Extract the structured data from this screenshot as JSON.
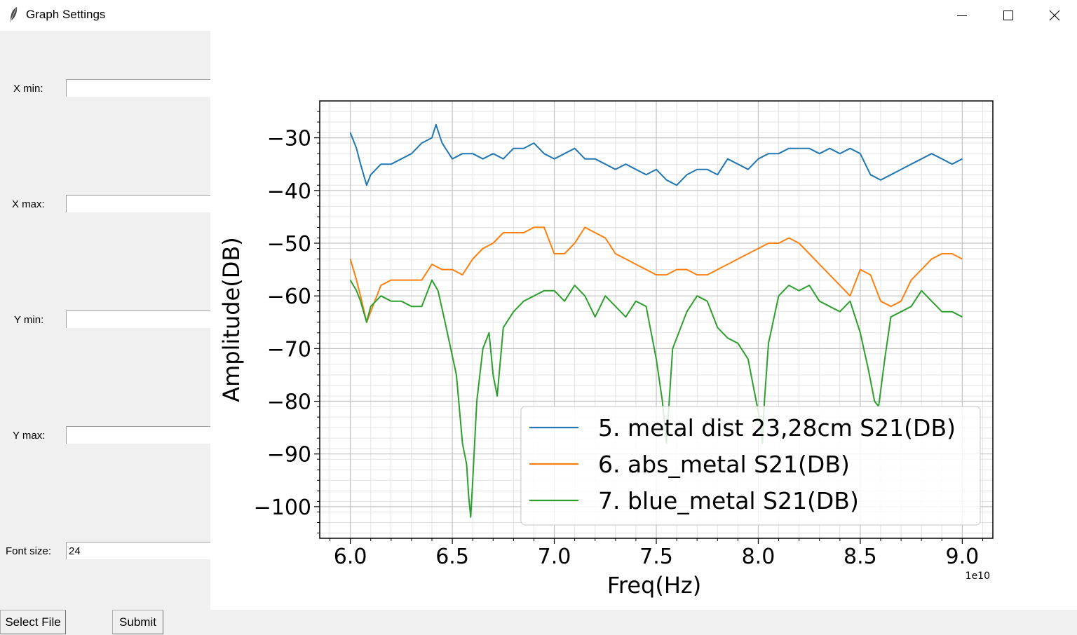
{
  "window": {
    "title": "Graph Settings",
    "app_icon": "feather-icon",
    "controls": [
      "minimize-icon",
      "maximize-icon",
      "close-icon"
    ]
  },
  "settings": {
    "x_min": {
      "label": "X min:",
      "value": ""
    },
    "x_max": {
      "label": "X max:",
      "value": ""
    },
    "y_min": {
      "label": "Y min:",
      "value": ""
    },
    "y_max": {
      "label": "Y max:",
      "value": ""
    },
    "font_size": {
      "label": "Font size:",
      "value": "24"
    }
  },
  "buttons": {
    "select_file": "Select File",
    "submit": "Submit"
  },
  "chart_data": {
    "type": "line",
    "title": "",
    "xlabel": "Freq(Hz)",
    "ylabel": "Amplitude(DB)",
    "x_offset_label": "1e10",
    "xlim": [
      5.85,
      9.15
    ],
    "ylim": [
      -106,
      -23
    ],
    "xticks": [
      6.0,
      6.5,
      7.0,
      7.5,
      8.0,
      8.5,
      9.0
    ],
    "xtick_labels": [
      "6.0",
      "6.5",
      "7.0",
      "7.5",
      "8.0",
      "8.5",
      "9.0"
    ],
    "yticks": [
      -30,
      -40,
      -50,
      -60,
      -70,
      -80,
      -90,
      -100
    ],
    "ytick_labels": [
      "−30",
      "−40",
      "−50",
      "−60",
      "−70",
      "−80",
      "−90",
      "−100"
    ],
    "grid": true,
    "minor_grid": true,
    "legend_position": "lower-right",
    "series": [
      {
        "name": "5. metal dist 23,28cm S21(DB)",
        "color": "#1f77b4",
        "x": [
          6.0,
          6.03,
          6.05,
          6.08,
          6.1,
          6.15,
          6.2,
          6.25,
          6.3,
          6.35,
          6.4,
          6.42,
          6.45,
          6.5,
          6.55,
          6.6,
          6.65,
          6.7,
          6.75,
          6.8,
          6.85,
          6.9,
          6.95,
          7.0,
          7.05,
          7.1,
          7.15,
          7.2,
          7.25,
          7.3,
          7.35,
          7.4,
          7.45,
          7.5,
          7.55,
          7.6,
          7.65,
          7.7,
          7.75,
          7.8,
          7.85,
          7.9,
          7.95,
          8.0,
          8.05,
          8.1,
          8.15,
          8.2,
          8.25,
          8.3,
          8.35,
          8.4,
          8.45,
          8.5,
          8.55,
          8.6,
          8.65,
          8.7,
          8.75,
          8.8,
          8.85,
          8.9,
          8.95,
          9.0
        ],
        "y": [
          -29,
          -32,
          -35,
          -39,
          -37,
          -35,
          -35,
          -34,
          -33,
          -31,
          -30,
          -27.5,
          -31,
          -34,
          -33,
          -33,
          -34,
          -33,
          -34,
          -32,
          -32,
          -31,
          -33,
          -34,
          -33,
          -32,
          -34,
          -34,
          -35,
          -36,
          -35,
          -36,
          -37,
          -36,
          -38,
          -39,
          -37,
          -36,
          -36,
          -37,
          -34,
          -35,
          -36,
          -34,
          -33,
          -33,
          -32,
          -32,
          -32,
          -33,
          -32,
          -33,
          -32,
          -33,
          -37,
          -38,
          -37,
          -36,
          -35,
          -34,
          -33,
          -34,
          -35,
          -34
        ]
      },
      {
        "name": "6. abs_metal  S21(DB)",
        "color": "#ff7f0e",
        "x": [
          6.0,
          6.03,
          6.05,
          6.08,
          6.1,
          6.15,
          6.2,
          6.25,
          6.3,
          6.35,
          6.4,
          6.45,
          6.5,
          6.55,
          6.6,
          6.65,
          6.7,
          6.75,
          6.8,
          6.85,
          6.9,
          6.95,
          7.0,
          7.05,
          7.1,
          7.15,
          7.2,
          7.25,
          7.3,
          7.35,
          7.4,
          7.45,
          7.5,
          7.55,
          7.6,
          7.65,
          7.7,
          7.75,
          7.8,
          7.85,
          7.9,
          7.95,
          8.0,
          8.05,
          8.1,
          8.15,
          8.2,
          8.25,
          8.3,
          8.35,
          8.4,
          8.45,
          8.5,
          8.55,
          8.6,
          8.65,
          8.7,
          8.75,
          8.8,
          8.85,
          8.9,
          8.95,
          9.0
        ],
        "y": [
          -53,
          -57,
          -60,
          -65,
          -63,
          -58,
          -57,
          -57,
          -57,
          -57,
          -54,
          -55,
          -55,
          -56,
          -53,
          -51,
          -50,
          -48,
          -48,
          -48,
          -47,
          -47,
          -52,
          -52,
          -50,
          -47,
          -48,
          -49,
          -52,
          -53,
          -54,
          -55,
          -56,
          -56,
          -55,
          -55,
          -56,
          -56,
          -55,
          -54,
          -53,
          -52,
          -51,
          -50,
          -50,
          -49,
          -50,
          -52,
          -54,
          -56,
          -58,
          -60,
          -55,
          -56,
          -61,
          -62,
          -61,
          -57,
          -55,
          -53,
          -52,
          -52,
          -53
        ]
      },
      {
        "name": "7. blue_metal S21(DB)",
        "color": "#2ca02c",
        "x": [
          6.0,
          6.03,
          6.05,
          6.08,
          6.1,
          6.15,
          6.2,
          6.25,
          6.3,
          6.35,
          6.4,
          6.43,
          6.47,
          6.52,
          6.55,
          6.57,
          6.58,
          6.59,
          6.6,
          6.62,
          6.65,
          6.68,
          6.7,
          6.72,
          6.75,
          6.8,
          6.85,
          6.9,
          6.95,
          7.0,
          7.05,
          7.1,
          7.15,
          7.2,
          7.25,
          7.3,
          7.35,
          7.4,
          7.45,
          7.5,
          7.53,
          7.55,
          7.58,
          7.6,
          7.65,
          7.7,
          7.75,
          7.8,
          7.85,
          7.9,
          7.95,
          7.98,
          8.01,
          8.02,
          8.03,
          8.05,
          8.1,
          8.15,
          8.2,
          8.25,
          8.3,
          8.35,
          8.4,
          8.45,
          8.5,
          8.54,
          8.57,
          8.59,
          8.62,
          8.65,
          8.7,
          8.75,
          8.8,
          8.85,
          8.9,
          8.95,
          9.0
        ],
        "y": [
          -57,
          -59,
          -61,
          -65,
          -62,
          -60,
          -61,
          -61,
          -62,
          -62,
          -57,
          -59,
          -66,
          -75,
          -88,
          -92,
          -98,
          -102,
          -95,
          -80,
          -70,
          -67,
          -75,
          -79,
          -66,
          -63,
          -61,
          -60,
          -59,
          -59,
          -61,
          -58,
          -60,
          -64,
          -60,
          -62,
          -64,
          -61,
          -62,
          -72,
          -80,
          -88,
          -70,
          -68,
          -63,
          -60,
          -61,
          -66,
          -68,
          -69,
          -72,
          -78,
          -84,
          -88,
          -80,
          -69,
          -60,
          -58,
          -59,
          -58,
          -61,
          -62,
          -63,
          -61,
          -67,
          -74,
          -80,
          -81,
          -72,
          -64,
          -63,
          -62,
          -59,
          -61,
          -63,
          -63,
          -64
        ]
      }
    ]
  }
}
